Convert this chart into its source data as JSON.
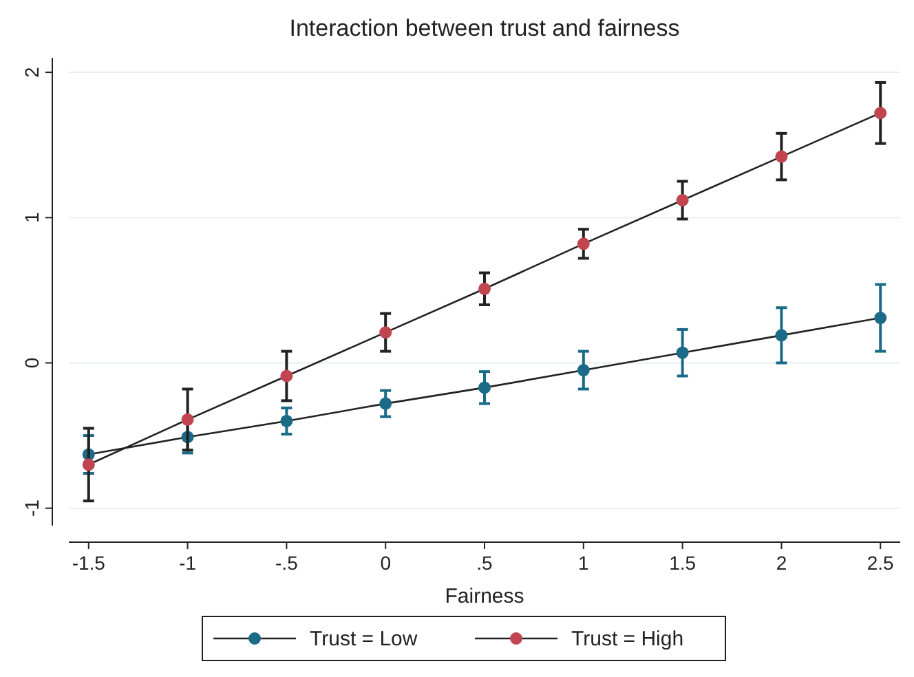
{
  "chart_data": {
    "type": "line",
    "title": "Interaction between trust and fairness",
    "xlabel": "Fairness",
    "x": [
      -1.5,
      -1,
      -0.5,
      0,
      0.5,
      1,
      1.5,
      2,
      2.5
    ],
    "series": [
      {
        "name": "Trust = Low",
        "color": "#1b6a87",
        "values": [
          -0.63,
          -0.51,
          -0.4,
          -0.28,
          -0.17,
          -0.05,
          0.07,
          0.19,
          0.31
        ],
        "errors": [
          0.13,
          0.11,
          0.09,
          0.09,
          0.11,
          0.13,
          0.16,
          0.19,
          0.23
        ]
      },
      {
        "name": "Trust = High",
        "color": "#c0454f",
        "values": [
          -0.7,
          -0.39,
          -0.09,
          0.21,
          0.51,
          0.82,
          1.12,
          1.42,
          1.72
        ],
        "errors": [
          0.25,
          0.21,
          0.17,
          0.13,
          0.11,
          0.1,
          0.13,
          0.16,
          0.21
        ]
      }
    ],
    "xlim": [
      -1.6,
      2.6
    ],
    "ylim": [
      -1.12,
      2.1
    ],
    "xticks": [
      {
        "value": -1.5,
        "label": "-1.5"
      },
      -1,
      {
        "value": -0.5,
        "label": "-.5"
      },
      0,
      {
        "value": 0.5,
        "label": ".5"
      },
      1,
      1.5,
      2,
      2.5
    ],
    "yticks": [
      -1,
      0,
      1,
      2
    ],
    "grid": "y",
    "legend": "bottom",
    "marker": "circle",
    "line_style": "solid"
  }
}
